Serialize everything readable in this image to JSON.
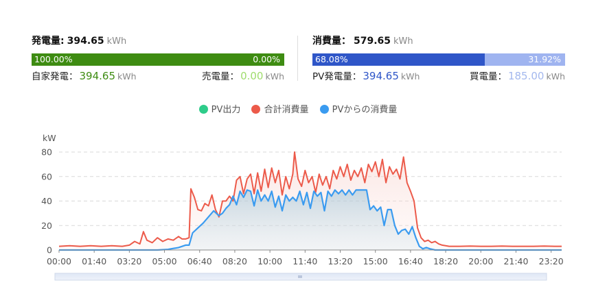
{
  "generation": {
    "label": "発電量:",
    "value": "394.65",
    "unit": "kWh",
    "bar_left_pct": "100.00%",
    "bar_right_pct": "0.00%",
    "bar_fraction": 1.0,
    "self_label": "自家発電：",
    "self_value": "394.65",
    "self_unit": "kWh",
    "sold_label": "売電量：",
    "sold_value": "0.00",
    "sold_unit": "kWh"
  },
  "consumption": {
    "label": "消費量：",
    "value": "579.65",
    "unit": "kWh",
    "bar_left_pct": "68.08%",
    "bar_right_pct": "31.92%",
    "bar_fraction": 0.6808,
    "pv_label": "PV発電量：",
    "pv_value": "394.65",
    "pv_unit": "kWh",
    "bought_label": "買電量：",
    "bought_value": "185.00",
    "bought_unit": "kWh"
  },
  "colors": {
    "green": "#3e8c12",
    "blue_bar": "#2f56c8",
    "light_blue_bar": "#9fb4f0",
    "pv_output": "#2ecc8a",
    "total_consumption": "#ec5a4a",
    "consumption_from_pv": "#3a9bf0"
  },
  "chart_data": {
    "type": "line",
    "ylabel": "kW",
    "ylim": [
      0,
      80
    ],
    "yticks": [
      0,
      20,
      40,
      60,
      80
    ],
    "grid": true,
    "legend_position": "top-center",
    "x_tick_labels": [
      "00:00",
      "01:40",
      "03:20",
      "05:00",
      "06:40",
      "08:20",
      "10:00",
      "11:40",
      "13:20",
      "15:00",
      "16:40",
      "18:20",
      "20:00",
      "21:40",
      "23:20"
    ],
    "x_tick_minutes": [
      0,
      100,
      200,
      300,
      400,
      500,
      600,
      700,
      800,
      900,
      1000,
      1100,
      1200,
      1300,
      1400
    ],
    "x_range_minutes": [
      0,
      1430
    ],
    "series": [
      {
        "name": "PV出力",
        "color": "#2ecc8a",
        "points": []
      },
      {
        "name": "合計消費量",
        "color": "#ec5a4a",
        "points": [
          [
            0,
            3
          ],
          [
            30,
            3.5
          ],
          [
            60,
            3
          ],
          [
            90,
            3.5
          ],
          [
            120,
            3
          ],
          [
            150,
            3.5
          ],
          [
            180,
            3
          ],
          [
            200,
            4
          ],
          [
            215,
            7
          ],
          [
            230,
            5
          ],
          [
            240,
            15
          ],
          [
            250,
            8
          ],
          [
            265,
            6
          ],
          [
            280,
            10
          ],
          [
            295,
            7
          ],
          [
            310,
            9
          ],
          [
            325,
            8
          ],
          [
            340,
            11
          ],
          [
            350,
            9
          ],
          [
            360,
            9
          ],
          [
            370,
            10
          ],
          [
            375,
            50
          ],
          [
            385,
            43
          ],
          [
            395,
            33
          ],
          [
            405,
            32
          ],
          [
            415,
            38
          ],
          [
            425,
            36
          ],
          [
            435,
            45
          ],
          [
            445,
            33
          ],
          [
            455,
            27
          ],
          [
            465,
            40
          ],
          [
            475,
            40
          ],
          [
            485,
            44
          ],
          [
            495,
            40
          ],
          [
            505,
            57
          ],
          [
            515,
            60
          ],
          [
            525,
            46
          ],
          [
            535,
            58
          ],
          [
            545,
            62
          ],
          [
            555,
            46
          ],
          [
            565,
            63
          ],
          [
            575,
            48
          ],
          [
            585,
            66
          ],
          [
            595,
            51
          ],
          [
            605,
            67
          ],
          [
            615,
            55
          ],
          [
            625,
            65
          ],
          [
            635,
            45
          ],
          [
            645,
            60
          ],
          [
            655,
            50
          ],
          [
            665,
            62
          ],
          [
            670,
            80
          ],
          [
            680,
            58
          ],
          [
            690,
            52
          ],
          [
            700,
            65
          ],
          [
            710,
            55
          ],
          [
            720,
            60
          ],
          [
            730,
            47
          ],
          [
            740,
            62
          ],
          [
            750,
            53
          ],
          [
            760,
            60
          ],
          [
            770,
            50
          ],
          [
            780,
            65
          ],
          [
            790,
            58
          ],
          [
            800,
            68
          ],
          [
            810,
            60
          ],
          [
            820,
            70
          ],
          [
            830,
            57
          ],
          [
            840,
            65
          ],
          [
            850,
            60
          ],
          [
            860,
            67
          ],
          [
            870,
            55
          ],
          [
            880,
            70
          ],
          [
            890,
            64
          ],
          [
            900,
            72
          ],
          [
            910,
            60
          ],
          [
            920,
            74
          ],
          [
            930,
            55
          ],
          [
            940,
            68
          ],
          [
            950,
            62
          ],
          [
            960,
            66
          ],
          [
            970,
            58
          ],
          [
            980,
            76
          ],
          [
            990,
            55
          ],
          [
            1000,
            48
          ],
          [
            1010,
            40
          ],
          [
            1020,
            18
          ],
          [
            1030,
            10
          ],
          [
            1040,
            7
          ],
          [
            1050,
            8
          ],
          [
            1060,
            6
          ],
          [
            1070,
            7
          ],
          [
            1080,
            5
          ],
          [
            1090,
            4
          ],
          [
            1110,
            3
          ],
          [
            1140,
            3
          ],
          [
            1170,
            3.2
          ],
          [
            1200,
            3
          ],
          [
            1230,
            3
          ],
          [
            1260,
            3.2
          ],
          [
            1290,
            3
          ],
          [
            1320,
            3
          ],
          [
            1350,
            3
          ],
          [
            1380,
            3.2
          ],
          [
            1410,
            3
          ],
          [
            1430,
            3
          ]
        ]
      },
      {
        "name": "PVからの消費量",
        "color": "#3a9bf0",
        "points": [
          [
            0,
            0
          ],
          [
            280,
            0
          ],
          [
            310,
            0.5
          ],
          [
            340,
            2
          ],
          [
            360,
            4
          ],
          [
            370,
            4
          ],
          [
            380,
            14
          ],
          [
            395,
            18
          ],
          [
            410,
            22
          ],
          [
            425,
            27
          ],
          [
            440,
            32
          ],
          [
            455,
            28
          ],
          [
            465,
            30
          ],
          [
            475,
            34
          ],
          [
            485,
            37
          ],
          [
            495,
            44
          ],
          [
            505,
            37
          ],
          [
            515,
            48
          ],
          [
            525,
            43
          ],
          [
            535,
            49
          ],
          [
            545,
            48
          ],
          [
            555,
            36
          ],
          [
            565,
            49
          ],
          [
            575,
            40
          ],
          [
            585,
            45
          ],
          [
            595,
            40
          ],
          [
            605,
            48
          ],
          [
            615,
            35
          ],
          [
            625,
            44
          ],
          [
            635,
            32
          ],
          [
            645,
            45
          ],
          [
            655,
            40
          ],
          [
            665,
            43
          ],
          [
            675,
            40
          ],
          [
            685,
            48
          ],
          [
            695,
            37
          ],
          [
            705,
            47
          ],
          [
            715,
            34
          ],
          [
            725,
            48
          ],
          [
            735,
            44
          ],
          [
            745,
            47
          ],
          [
            755,
            32
          ],
          [
            765,
            48
          ],
          [
            775,
            44
          ],
          [
            785,
            49
          ],
          [
            795,
            46
          ],
          [
            805,
            49
          ],
          [
            815,
            45
          ],
          [
            825,
            49
          ],
          [
            835,
            45
          ],
          [
            845,
            49
          ],
          [
            855,
            49
          ],
          [
            865,
            49
          ],
          [
            875,
            49
          ],
          [
            885,
            33
          ],
          [
            895,
            36
          ],
          [
            905,
            32
          ],
          [
            915,
            35
          ],
          [
            925,
            20
          ],
          [
            935,
            33
          ],
          [
            945,
            33
          ],
          [
            955,
            20
          ],
          [
            965,
            13
          ],
          [
            975,
            16
          ],
          [
            985,
            17
          ],
          [
            995,
            13
          ],
          [
            1005,
            19
          ],
          [
            1015,
            10
          ],
          [
            1025,
            3
          ],
          [
            1035,
            1
          ],
          [
            1045,
            2
          ],
          [
            1055,
            1
          ],
          [
            1070,
            0
          ],
          [
            1430,
            0
          ]
        ]
      }
    ]
  }
}
